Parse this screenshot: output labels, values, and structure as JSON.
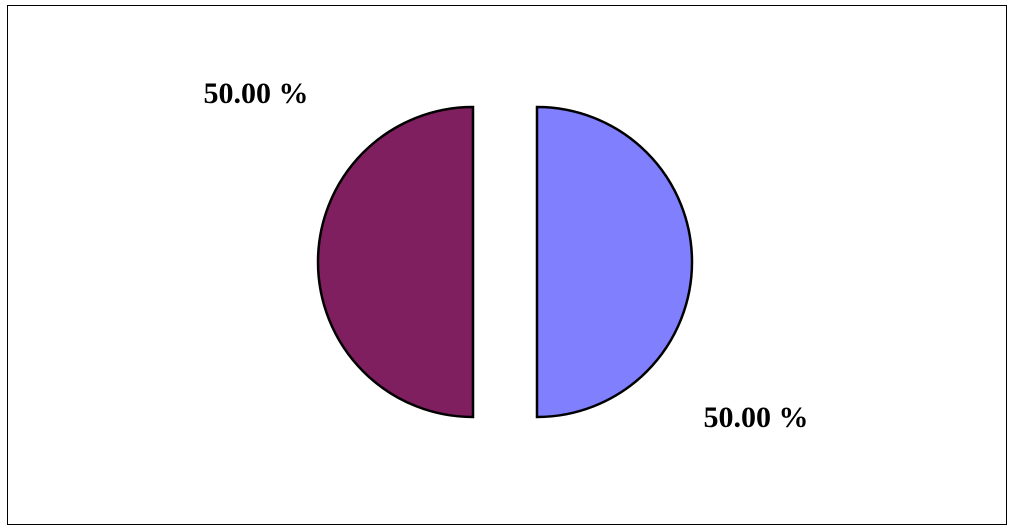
{
  "chart_data": {
    "type": "pie",
    "exploded": true,
    "legend": false,
    "slices": [
      {
        "value": 50.0,
        "label": "50.00 %",
        "color": "#8080ff"
      },
      {
        "value": 50.0,
        "label": "50.00 %",
        "color": "#7f1f5f"
      }
    ]
  }
}
